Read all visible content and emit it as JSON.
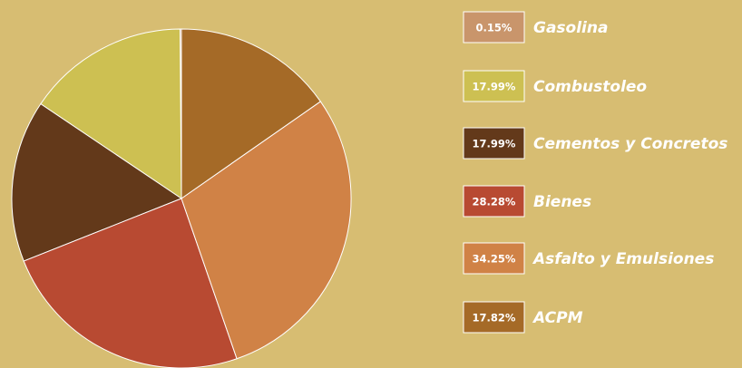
{
  "chart_data": {
    "type": "pie",
    "categories": [
      "Gasolina",
      "Combustoleo",
      "Cementos y Concretos",
      "Bienes",
      "Asfalto y Emulsiones",
      "ACPM"
    ],
    "values": [
      0.15,
      17.99,
      17.99,
      28.28,
      34.25,
      17.82
    ],
    "value_labels": [
      "0.15%",
      "17.99%",
      "17.99%",
      "28.28%",
      "34.25%",
      "17.82%"
    ],
    "colors": [
      "#c9956b",
      "#cdc052",
      "#63391a",
      "#b84a32",
      "#d08246",
      "#a56a27"
    ],
    "legend": "right"
  }
}
